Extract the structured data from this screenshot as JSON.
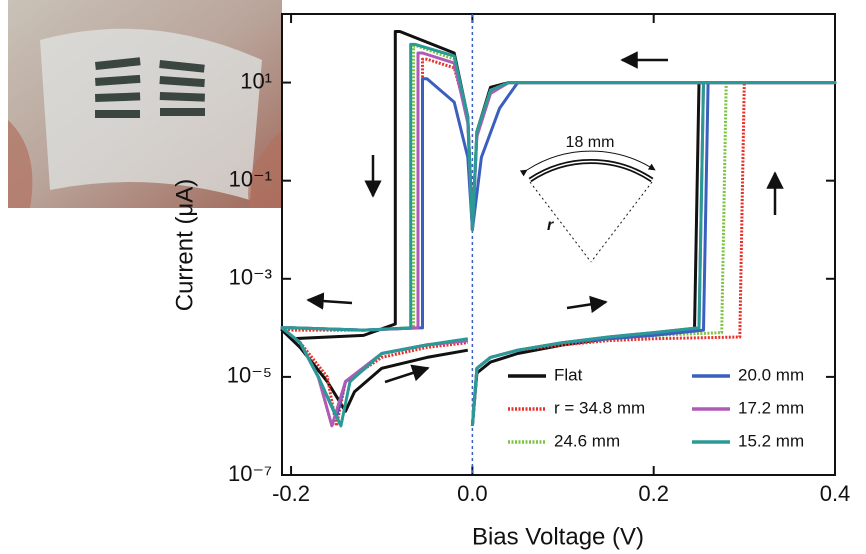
{
  "chart_data": {
    "type": "line",
    "x_label": "Bias Voltage (V)",
    "y_label": "Current (μA)",
    "log_y": true,
    "xlim": [
      -0.21,
      0.4
    ],
    "ylim": [
      1e-07,
      250
    ],
    "xticks": [
      -0.2,
      {
        "value": 0,
        "label": "0.0"
      },
      0.2,
      0.4
    ],
    "yticks": [
      {
        "value": 1e-07,
        "label": "10⁻⁷"
      },
      {
        "value": 1e-05,
        "label": "10⁻⁵"
      },
      {
        "value": 0.001,
        "label": "10⁻³"
      },
      {
        "value": 0.1,
        "label": "10⁻¹"
      },
      {
        "value": 10,
        "label": "10¹"
      }
    ],
    "reference_line": {
      "x": 0,
      "color": "#3a5fbf"
    },
    "legend_position": "lower right",
    "annotations": [
      "18 mm",
      "r"
    ],
    "series": [
      {
        "name": "Flat",
        "color": "#111111",
        "dashed": false,
        "x": [
          0,
          0.005,
          0.02,
          0.05,
          0.1,
          0.15,
          0.2,
          0.245,
          0.25,
          0.4,
          0.04,
          0.02,
          0.005,
          0,
          -0.005,
          -0.02,
          -0.08,
          -0.085,
          -0.085,
          -0.12,
          -0.2,
          -0.21,
          -0.19,
          -0.16,
          -0.14,
          -0.13,
          -0.1,
          -0.05,
          -0.005
        ],
        "values": [
          1e-06,
          1.2e-05,
          2e-05,
          3e-05,
          4.5e-05,
          6e-05,
          7.5e-05,
          9e-05,
          10,
          10,
          10,
          8,
          1,
          0.01,
          2,
          40,
          110,
          110,
          0.00012,
          7e-05,
          6e-05,
          9e-05,
          4e-05,
          8e-06,
          2e-06,
          5e-06,
          1.5e-05,
          2.5e-05,
          3.5e-05
        ]
      },
      {
        "name": "r = 34.8 mm",
        "color": "#e8312a",
        "dashed": true,
        "x": [
          0,
          0.005,
          0.02,
          0.05,
          0.1,
          0.15,
          0.2,
          0.295,
          0.3,
          0.4,
          0.04,
          0.02,
          0.005,
          0,
          -0.005,
          -0.02,
          -0.05,
          -0.055,
          -0.055,
          -0.12,
          -0.2,
          -0.21,
          -0.19,
          -0.16,
          -0.15,
          -0.14,
          -0.1,
          -0.05,
          -0.005
        ],
        "values": [
          1e-06,
          1.5e-05,
          2.5e-05,
          3.5e-05,
          4.5e-05,
          5.5e-05,
          6e-05,
          6.5e-05,
          10,
          10,
          10,
          7,
          1,
          0.01,
          2,
          20,
          30,
          30,
          0.0001,
          9e-05,
          9e-05,
          0.0001,
          5e-05,
          1e-05,
          1e-06,
          8e-06,
          2.5e-05,
          4e-05,
          5e-05
        ]
      },
      {
        "name": "24.6 mm",
        "color": "#7dc443",
        "dashed": true,
        "x": [
          0,
          0.005,
          0.02,
          0.05,
          0.1,
          0.15,
          0.2,
          0.275,
          0.28,
          0.4,
          0.04,
          0.02,
          0.005,
          0,
          -0.005,
          -0.02,
          -0.06,
          -0.065,
          -0.065,
          -0.12,
          -0.2,
          -0.21,
          -0.19,
          -0.17,
          -0.155,
          -0.14,
          -0.1,
          -0.05,
          -0.005
        ],
        "values": [
          1e-06,
          1.5e-05,
          2.5e-05,
          3.5e-05,
          5e-05,
          6e-05,
          7e-05,
          8e-05,
          10,
          10,
          10,
          7,
          1,
          0.01,
          2,
          30,
          55,
          55,
          0.0001,
          9e-05,
          0.0001,
          0.0001,
          5e-05,
          1e-05,
          1e-06,
          8e-06,
          3e-05,
          4.5e-05,
          5.5e-05
        ]
      },
      {
        "name": "20.0 mm",
        "color": "#3a5fbf",
        "dashed": false,
        "x": [
          0,
          0.005,
          0.02,
          0.05,
          0.1,
          0.15,
          0.2,
          0.255,
          0.26,
          0.4,
          0.05,
          0.03,
          0.01,
          0,
          -0.005,
          -0.02,
          -0.05,
          -0.055,
          -0.055,
          -0.12,
          -0.2,
          -0.21,
          -0.19,
          -0.17,
          -0.15,
          -0.14,
          -0.1,
          -0.05,
          -0.005
        ],
        "values": [
          1e-06,
          1.5e-05,
          2.5e-05,
          3.5e-05,
          5e-05,
          6e-05,
          7e-05,
          9e-05,
          10,
          10,
          10,
          3,
          0.3,
          0.01,
          0.3,
          4,
          12,
          12,
          0.0001,
          9e-05,
          0.0001,
          0.0001,
          5e-05,
          1e-05,
          1.5e-06,
          8e-06,
          3e-05,
          4.5e-05,
          5.5e-05
        ]
      },
      {
        "name": "17.2 mm",
        "color": "#b05ab8",
        "dashed": false,
        "x": [
          0,
          0.005,
          0.02,
          0.05,
          0.1,
          0.15,
          0.2,
          0.25,
          0.255,
          0.4,
          0.04,
          0.02,
          0.005,
          0,
          -0.005,
          -0.02,
          -0.055,
          -0.06,
          -0.06,
          -0.12,
          -0.2,
          -0.21,
          -0.19,
          -0.17,
          -0.155,
          -0.14,
          -0.1,
          -0.05,
          -0.005
        ],
        "values": [
          1e-06,
          1.5e-05,
          2.5e-05,
          3.5e-05,
          5e-05,
          6.5e-05,
          8e-05,
          0.0001,
          10,
          10,
          10,
          6,
          0.8,
          0.01,
          1.5,
          25,
          40,
          40,
          0.0001,
          9e-05,
          0.0001,
          0.0001,
          5e-05,
          1e-05,
          1e-06,
          8e-06,
          3e-05,
          4.5e-05,
          5.5e-05
        ]
      },
      {
        "name": "15.2 mm",
        "color": "#2a9a96",
        "dashed": false,
        "x": [
          0,
          0.005,
          0.02,
          0.05,
          0.1,
          0.15,
          0.2,
          0.25,
          0.255,
          0.4,
          0.04,
          0.02,
          0.005,
          0,
          -0.005,
          -0.02,
          -0.063,
          -0.068,
          -0.068,
          -0.12,
          -0.2,
          -0.21,
          -0.19,
          -0.17,
          -0.145,
          -0.135,
          -0.1,
          -0.05,
          -0.005
        ],
        "values": [
          1e-06,
          1.5e-05,
          2.5e-05,
          3.5e-05,
          5e-05,
          6.5e-05,
          8e-05,
          0.0001,
          10,
          10,
          10,
          7,
          1,
          0.01,
          2,
          35,
          60,
          60,
          0.0001,
          9e-05,
          0.0001,
          0.0001,
          5e-05,
          1e-05,
          1e-06,
          8e-06,
          3e-05,
          4.5e-05,
          6e-05
        ]
      }
    ]
  }
}
